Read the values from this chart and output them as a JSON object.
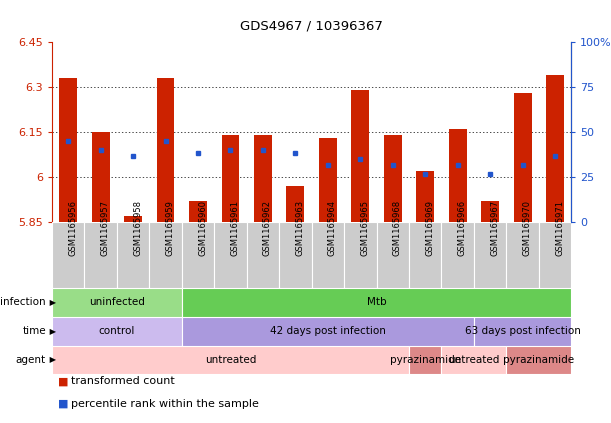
{
  "title": "GDS4967 / 10396367",
  "samples": [
    "GSM1165956",
    "GSM1165957",
    "GSM1165958",
    "GSM1165959",
    "GSM1165960",
    "GSM1165961",
    "GSM1165962",
    "GSM1165963",
    "GSM1165964",
    "GSM1165965",
    "GSM1165968",
    "GSM1165969",
    "GSM1165966",
    "GSM1165967",
    "GSM1165970",
    "GSM1165971"
  ],
  "bar_values": [
    6.33,
    6.15,
    5.87,
    6.33,
    5.92,
    6.14,
    6.14,
    5.97,
    6.13,
    6.29,
    6.14,
    6.02,
    6.16,
    5.92,
    6.28,
    6.34
  ],
  "dot_values": [
    6.12,
    6.09,
    6.07,
    6.12,
    6.08,
    6.09,
    6.09,
    6.08,
    6.04,
    6.06,
    6.04,
    6.01,
    6.04,
    6.01,
    6.04,
    6.07
  ],
  "ymin": 5.85,
  "ymax": 6.45,
  "yticks": [
    5.85,
    6.0,
    6.15,
    6.3,
    6.45
  ],
  "ytick_labels": [
    "5.85",
    "6",
    "6.15",
    "6.3",
    "6.45"
  ],
  "y2min": 0,
  "y2max": 100,
  "y2ticks": [
    0,
    25,
    50,
    75,
    100
  ],
  "y2tick_labels": [
    "0",
    "25",
    "50",
    "75",
    "100%"
  ],
  "bar_color": "#cc2200",
  "dot_color": "#2255cc",
  "infection_groups": [
    {
      "label": "uninfected",
      "start": 0,
      "end": 3,
      "color": "#99dd88"
    },
    {
      "label": "Mtb",
      "start": 4,
      "end": 15,
      "color": "#66cc55"
    }
  ],
  "time_groups": [
    {
      "label": "control",
      "start": 0,
      "end": 3,
      "color": "#ccbbee"
    },
    {
      "label": "42 days post infection",
      "start": 4,
      "end": 12,
      "color": "#aa99dd"
    },
    {
      "label": "63 days post infection",
      "start": 13,
      "end": 15,
      "color": "#aa99dd"
    }
  ],
  "agent_groups": [
    {
      "label": "untreated",
      "start": 0,
      "end": 10,
      "color": "#ffcccc"
    },
    {
      "label": "pyrazinamide",
      "start": 11,
      "end": 11,
      "color": "#dd8888"
    },
    {
      "label": "untreated",
      "start": 12,
      "end": 13,
      "color": "#ffcccc"
    },
    {
      "label": "pyrazinamide",
      "start": 14,
      "end": 15,
      "color": "#dd8888"
    }
  ],
  "legend_items": [
    {
      "label": "transformed count",
      "color": "#cc2200"
    },
    {
      "label": "percentile rank within the sample",
      "color": "#2255cc"
    }
  ],
  "row_labels": [
    "infection",
    "time",
    "agent"
  ],
  "tick_color_left": "#cc2200",
  "tick_color_right": "#2255cc",
  "xtick_bg": "#cccccc"
}
